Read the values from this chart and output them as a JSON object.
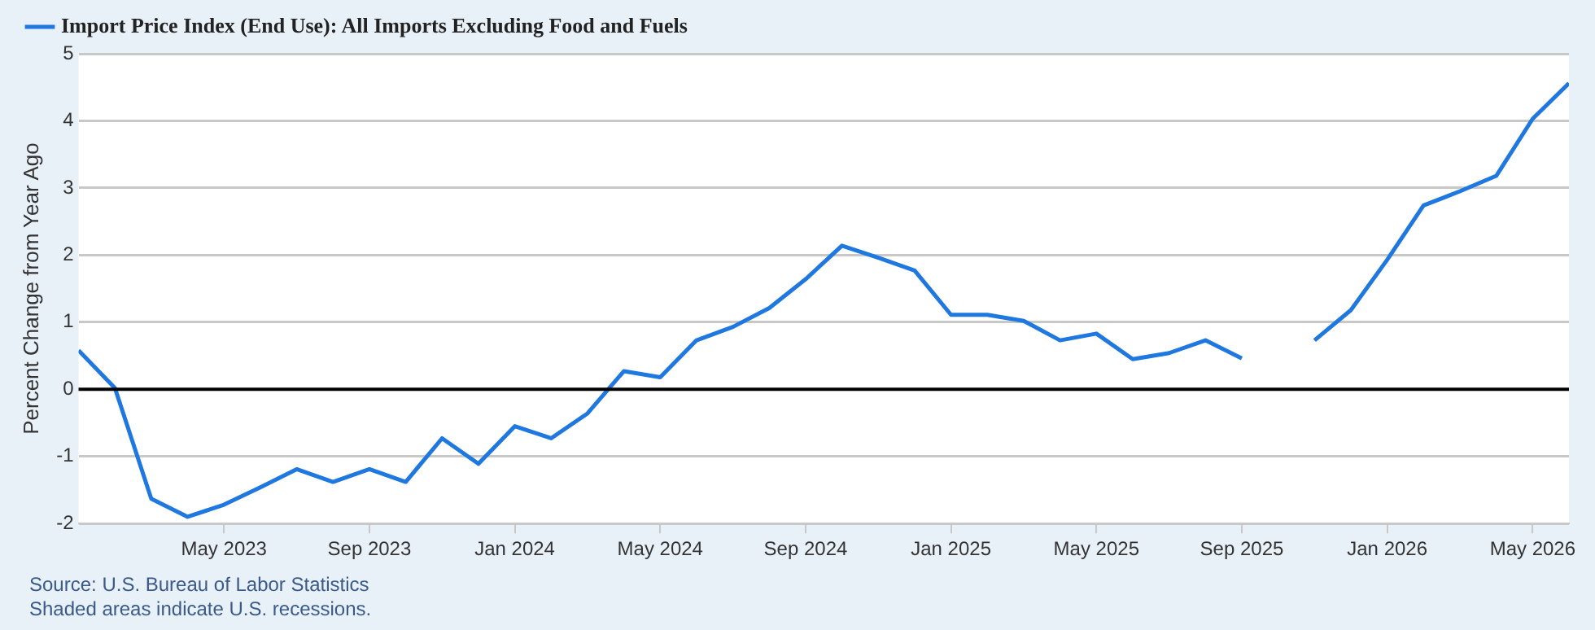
{
  "chart_data": {
    "type": "line",
    "ylabel": "Percent Change from Year Ago",
    "x": [
      "2023-01",
      "2023-02",
      "2023-03",
      "2023-04",
      "2023-05",
      "2023-06",
      "2023-07",
      "2023-08",
      "2023-09",
      "2023-10",
      "2023-11",
      "2023-12",
      "2024-01",
      "2024-02",
      "2024-03",
      "2024-04",
      "2024-05",
      "2024-06",
      "2024-07",
      "2024-08",
      "2024-09",
      "2024-10",
      "2024-11",
      "2024-12",
      "2025-01",
      "2025-02",
      "2025-03",
      "2025-04",
      "2025-05",
      "2025-06",
      "2025-07",
      "2025-08",
      "2025-09",
      "2025-10",
      "2025-11",
      "2025-12",
      "2026-01",
      "2026-02",
      "2026-03",
      "2026-04",
      "2026-05",
      "2026-06"
    ],
    "series": [
      {
        "name": "Import Price Index (End Use): All Imports Excluding Food and Fuels",
        "color": "#1f78e0",
        "values": [
          0.58,
          0.02,
          -1.63,
          -1.9,
          -1.72,
          -1.46,
          -1.19,
          -1.38,
          -1.19,
          -1.38,
          -0.73,
          -1.11,
          -0.55,
          -0.73,
          -0.36,
          0.27,
          0.18,
          0.73,
          0.93,
          1.21,
          1.64,
          2.14,
          1.96,
          1.77,
          1.11,
          1.11,
          1.02,
          0.73,
          0.83,
          0.45,
          0.54,
          0.73,
          0.46,
          null,
          0.73,
          1.18,
          1.93,
          2.74,
          2.95,
          3.18,
          4.03,
          4.56
        ]
      }
    ],
    "xlim": [
      "2023-01",
      "2026-06"
    ],
    "xticks": [
      {
        "value": "2023-05",
        "label": "May 2023"
      },
      {
        "value": "2023-09",
        "label": "Sep 2023"
      },
      {
        "value": "2024-01",
        "label": "Jan 2024"
      },
      {
        "value": "2024-05",
        "label": "May 2024"
      },
      {
        "value": "2024-09",
        "label": "Sep 2024"
      },
      {
        "value": "2025-01",
        "label": "Jan 2025"
      },
      {
        "value": "2025-05",
        "label": "May 2025"
      },
      {
        "value": "2025-09",
        "label": "Sep 2025"
      },
      {
        "value": "2026-01",
        "label": "Jan 2026"
      },
      {
        "value": "2026-05",
        "label": "May 2026"
      }
    ],
    "ylim": [
      -2,
      5
    ],
    "yticks": [
      -2,
      -1,
      0,
      1,
      2,
      3,
      4,
      5
    ],
    "ref_lines": [
      {
        "axis": "y",
        "value": 0,
        "color": "#000000"
      }
    ],
    "grid": "y",
    "legend": "top",
    "marker": "none",
    "line_style": "solid",
    "annotations": [
      "Source: U.S. Bureau of Labor Statistics",
      "Shaded areas indicate U.S. recessions."
    ]
  }
}
